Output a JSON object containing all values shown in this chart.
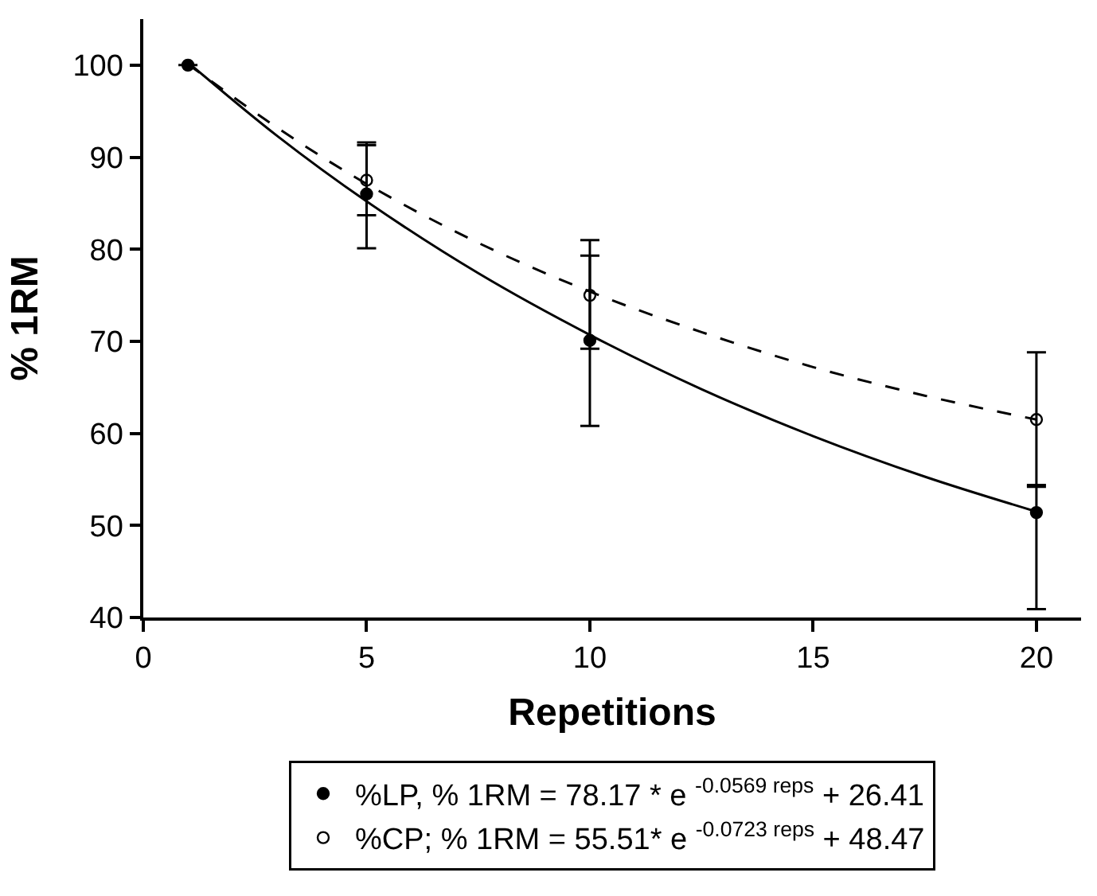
{
  "chart_data": {
    "type": "scatter",
    "xlabel": "Repetitions",
    "ylabel": "% 1RM",
    "xlim": [
      0,
      21
    ],
    "ylim": [
      40,
      105
    ],
    "xticks": [
      0,
      5,
      10,
      15,
      20
    ],
    "yticks": [
      40,
      50,
      60,
      70,
      80,
      90,
      100
    ],
    "legend": "bottom",
    "series": [
      {
        "name": "%LP, % 1RM = 78.17 * e $^{-0.0569 reps}$ + 26.41",
        "color": "#000000",
        "marker": "circle",
        "x": [
          1,
          5,
          10,
          20
        ],
        "values": [
          100,
          86,
          70.1,
          51.4
        ],
        "errors": [
          null,
          [
            80.1,
            91.3
          ],
          [
            60.8,
            79.3
          ],
          [
            40.9,
            54.2
          ]
        ]
      },
      {
        "name": "%CP; % 1RM = 55.51* e $^{-0.0723 reps}$ + 48.47",
        "color": "#000000",
        "marker": "circle-open",
        "x": [
          5,
          10,
          20
        ],
        "values": [
          87.5,
          75.0,
          61.5
        ],
        "errors": [
          [
            83.7,
            91.6
          ],
          [
            69.2,
            81.0
          ],
          [
            54.4,
            68.8
          ]
        ]
      },
      {
        "type": "line",
        "color": "#000000",
        "line_style": "solid",
        "marker": "none",
        "x": [
          1,
          3,
          5,
          7.5,
          10,
          12.5,
          15,
          17.5,
          20
        ],
        "values": [
          100.3,
          92.3,
          85.2,
          77.4,
          70.7,
          64.8,
          59.7,
          55.3,
          51.5
        ]
      },
      {
        "type": "line",
        "color": "#000000",
        "line_style": "dashed",
        "marker": "none",
        "x": [
          1,
          3,
          5,
          7.5,
          10,
          12.5,
          15,
          17.5,
          20
        ],
        "values": [
          100.1,
          93.2,
          87.1,
          80.7,
          75.4,
          71.0,
          67.2,
          64.1,
          61.5
        ]
      }
    ]
  }
}
